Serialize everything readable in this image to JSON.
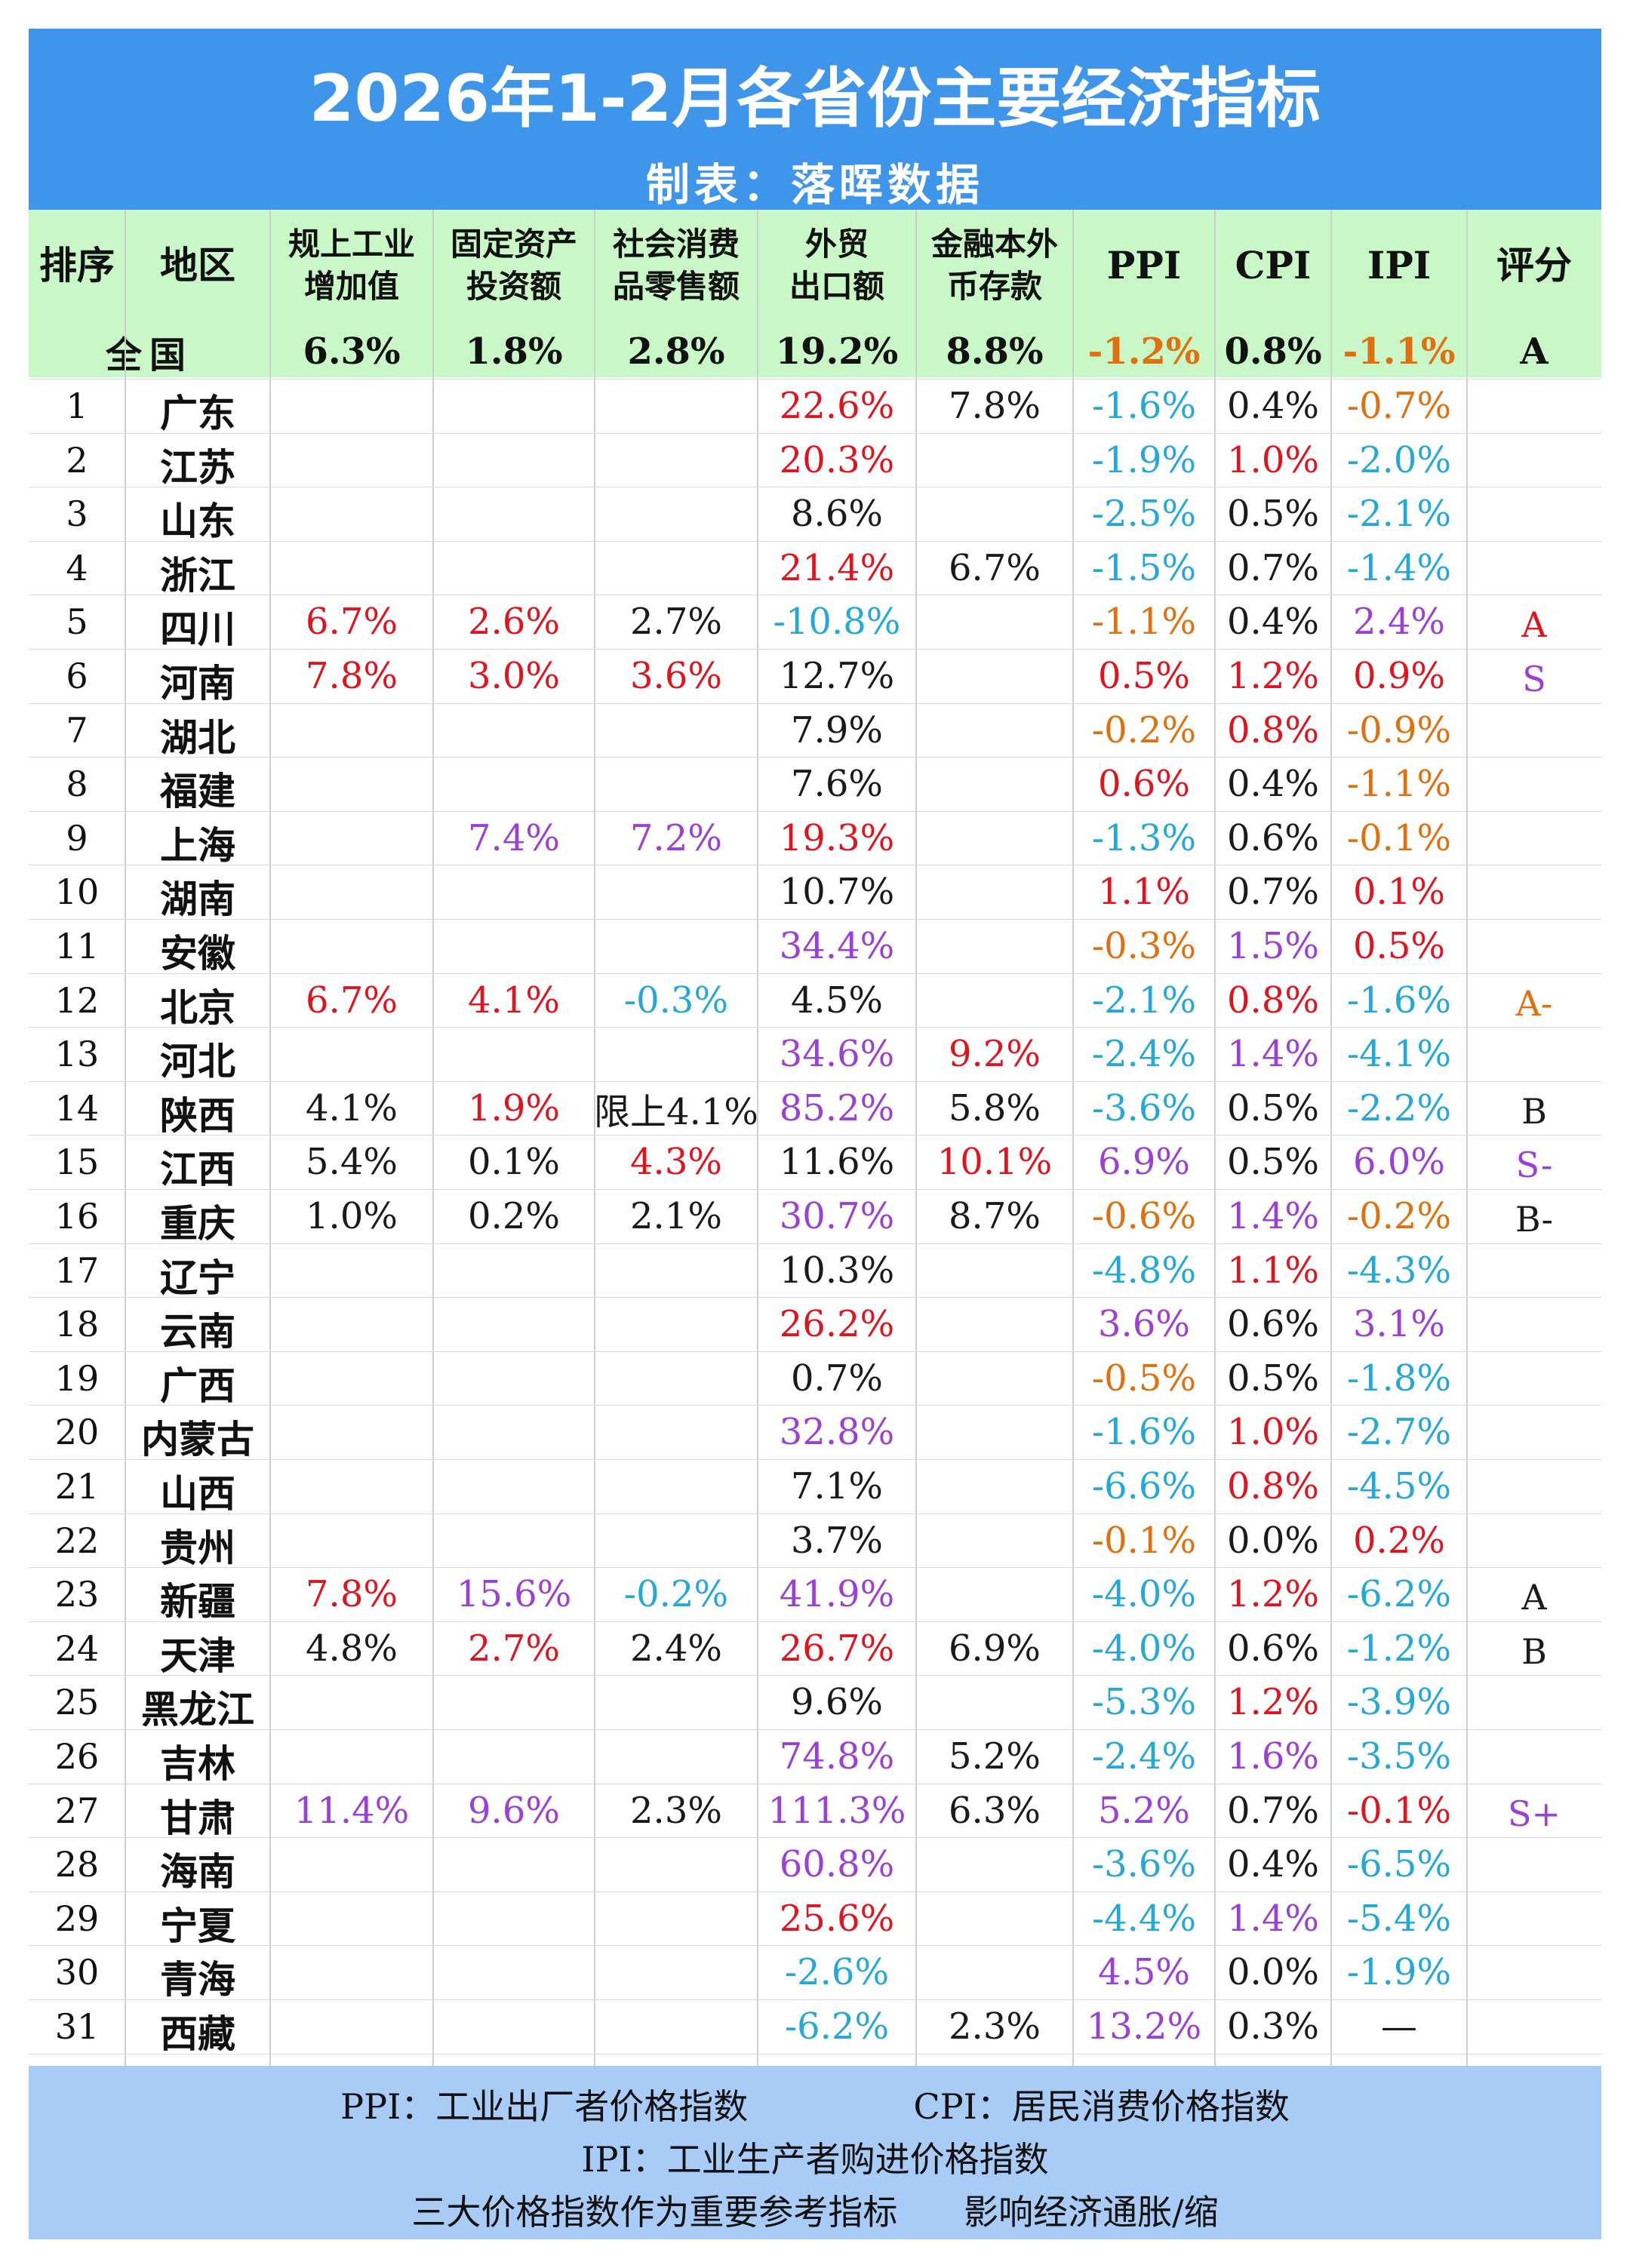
{
  "title": "2026年1-2月各省份主要经济指标",
  "subtitle": "制表：落晖数据",
  "columns": [
    "排序",
    "地区",
    "规上工业\n增加值",
    "固定资产\n投资额",
    "社会消费\n品零售额",
    "外贸\n出口额",
    "金融本外\n币存款",
    "PPI",
    "CPI",
    "IPI",
    "评分"
  ],
  "national": {
    "label": "全国",
    "values": [
      "6.3%",
      "1.8%",
      "2.8%",
      "19.2%",
      "8.8%",
      "-1.2%",
      "0.8%",
      "-1.1%",
      "A"
    ],
    "colors": [
      "#111111",
      "#111111",
      "#111111",
      "#111111",
      "#111111",
      "#e0700e",
      "#111111",
      "#e0700e",
      "#111111"
    ]
  },
  "colors": {
    "k": "#1a1a1a",
    "r": "#e0141e",
    "p": "#9b3fd6",
    "c": "#24a8d8",
    "o": "#e0700e",
    "title_bg": "#3f95e9",
    "header_bg": "#c9f7c8",
    "footer_bg": "#a9ccf6"
  },
  "rows": [
    {
      "rank": "1",
      "region": "广东",
      "cells": [
        [
          "",
          ""
        ],
        [
          "",
          ""
        ],
        [
          "",
          ""
        ],
        [
          "22.6%",
          "r"
        ],
        [
          "7.8%",
          "k"
        ],
        [
          "-1.6%",
          "c"
        ],
        [
          "0.4%",
          "k"
        ],
        [
          "-0.7%",
          "o"
        ],
        [
          "",
          ""
        ]
      ]
    },
    {
      "rank": "2",
      "region": "江苏",
      "cells": [
        [
          "",
          ""
        ],
        [
          "",
          ""
        ],
        [
          "",
          ""
        ],
        [
          "20.3%",
          "r"
        ],
        [
          "",
          ""
        ],
        [
          "-1.9%",
          "c"
        ],
        [
          "1.0%",
          "r"
        ],
        [
          "-2.0%",
          "c"
        ],
        [
          "",
          ""
        ]
      ]
    },
    {
      "rank": "3",
      "region": "山东",
      "cells": [
        [
          "",
          ""
        ],
        [
          "",
          ""
        ],
        [
          "",
          ""
        ],
        [
          "8.6%",
          "k"
        ],
        [
          "",
          ""
        ],
        [
          "-2.5%",
          "c"
        ],
        [
          "0.5%",
          "k"
        ],
        [
          "-2.1%",
          "c"
        ],
        [
          "",
          ""
        ]
      ]
    },
    {
      "rank": "4",
      "region": "浙江",
      "cells": [
        [
          "",
          ""
        ],
        [
          "",
          ""
        ],
        [
          "",
          ""
        ],
        [
          "21.4%",
          "r"
        ],
        [
          "6.7%",
          "k"
        ],
        [
          "-1.5%",
          "c"
        ],
        [
          "0.7%",
          "k"
        ],
        [
          "-1.4%",
          "c"
        ],
        [
          "",
          ""
        ]
      ]
    },
    {
      "rank": "5",
      "region": "四川",
      "cells": [
        [
          "6.7%",
          "r"
        ],
        [
          "2.6%",
          "r"
        ],
        [
          "2.7%",
          "k"
        ],
        [
          "-10.8%",
          "c"
        ],
        [
          "",
          ""
        ],
        [
          "-1.1%",
          "o"
        ],
        [
          "0.4%",
          "k"
        ],
        [
          "2.4%",
          "p"
        ],
        [
          "A",
          "r"
        ]
      ]
    },
    {
      "rank": "6",
      "region": "河南",
      "cells": [
        [
          "7.8%",
          "r"
        ],
        [
          "3.0%",
          "r"
        ],
        [
          "3.6%",
          "r"
        ],
        [
          "12.7%",
          "k"
        ],
        [
          "",
          ""
        ],
        [
          "0.5%",
          "r"
        ],
        [
          "1.2%",
          "r"
        ],
        [
          "0.9%",
          "r"
        ],
        [
          "S",
          "p"
        ]
      ]
    },
    {
      "rank": "7",
      "region": "湖北",
      "cells": [
        [
          "",
          ""
        ],
        [
          "",
          ""
        ],
        [
          "",
          ""
        ],
        [
          "7.9%",
          "k"
        ],
        [
          "",
          ""
        ],
        [
          "-0.2%",
          "o"
        ],
        [
          "0.8%",
          "r"
        ],
        [
          "-0.9%",
          "o"
        ],
        [
          "",
          ""
        ]
      ]
    },
    {
      "rank": "8",
      "region": "福建",
      "cells": [
        [
          "",
          ""
        ],
        [
          "",
          ""
        ],
        [
          "",
          ""
        ],
        [
          "7.6%",
          "k"
        ],
        [
          "",
          ""
        ],
        [
          "0.6%",
          "r"
        ],
        [
          "0.4%",
          "k"
        ],
        [
          "-1.1%",
          "o"
        ],
        [
          "",
          ""
        ]
      ]
    },
    {
      "rank": "9",
      "region": "上海",
      "cells": [
        [
          "",
          ""
        ],
        [
          "7.4%",
          "p"
        ],
        [
          "7.2%",
          "p"
        ],
        [
          "19.3%",
          "r"
        ],
        [
          "",
          ""
        ],
        [
          "-1.3%",
          "c"
        ],
        [
          "0.6%",
          "k"
        ],
        [
          "-0.1%",
          "o"
        ],
        [
          "",
          ""
        ]
      ]
    },
    {
      "rank": "10",
      "region": "湖南",
      "cells": [
        [
          "",
          ""
        ],
        [
          "",
          ""
        ],
        [
          "",
          ""
        ],
        [
          "10.7%",
          "k"
        ],
        [
          "",
          ""
        ],
        [
          "1.1%",
          "r"
        ],
        [
          "0.7%",
          "k"
        ],
        [
          "0.1%",
          "r"
        ],
        [
          "",
          ""
        ]
      ]
    },
    {
      "rank": "11",
      "region": "安徽",
      "cells": [
        [
          "",
          ""
        ],
        [
          "",
          ""
        ],
        [
          "",
          ""
        ],
        [
          "34.4%",
          "p"
        ],
        [
          "",
          ""
        ],
        [
          "-0.3%",
          "o"
        ],
        [
          "1.5%",
          "p"
        ],
        [
          "0.5%",
          "r"
        ],
        [
          "",
          ""
        ]
      ]
    },
    {
      "rank": "12",
      "region": "北京",
      "cells": [
        [
          "6.7%",
          "r"
        ],
        [
          "4.1%",
          "r"
        ],
        [
          "-0.3%",
          "c"
        ],
        [
          "4.5%",
          "k"
        ],
        [
          "",
          ""
        ],
        [
          "-2.1%",
          "c"
        ],
        [
          "0.8%",
          "r"
        ],
        [
          "-1.6%",
          "c"
        ],
        [
          "A-",
          "o"
        ]
      ]
    },
    {
      "rank": "13",
      "region": "河北",
      "cells": [
        [
          "",
          ""
        ],
        [
          "",
          ""
        ],
        [
          "",
          ""
        ],
        [
          "34.6%",
          "p"
        ],
        [
          "9.2%",
          "r"
        ],
        [
          "-2.4%",
          "c"
        ],
        [
          "1.4%",
          "p"
        ],
        [
          "-4.1%",
          "c"
        ],
        [
          "",
          ""
        ]
      ]
    },
    {
      "rank": "14",
      "region": "陕西",
      "cells": [
        [
          "4.1%",
          "k"
        ],
        [
          "1.9%",
          "r"
        ],
        [
          "限上4.1%",
          "k"
        ],
        [
          "85.2%",
          "p"
        ],
        [
          "5.8%",
          "k"
        ],
        [
          "-3.6%",
          "c"
        ],
        [
          "0.5%",
          "k"
        ],
        [
          "-2.2%",
          "c"
        ],
        [
          "B",
          "k"
        ]
      ]
    },
    {
      "rank": "15",
      "region": "江西",
      "cells": [
        [
          "5.4%",
          "k"
        ],
        [
          "0.1%",
          "k"
        ],
        [
          "4.3%",
          "r"
        ],
        [
          "11.6%",
          "k"
        ],
        [
          "10.1%",
          "r"
        ],
        [
          "6.9%",
          "p"
        ],
        [
          "0.5%",
          "k"
        ],
        [
          "6.0%",
          "p"
        ],
        [
          "S-",
          "p"
        ]
      ]
    },
    {
      "rank": "16",
      "region": "重庆",
      "cells": [
        [
          "1.0%",
          "k"
        ],
        [
          "0.2%",
          "k"
        ],
        [
          "2.1%",
          "k"
        ],
        [
          "30.7%",
          "p"
        ],
        [
          "8.7%",
          "k"
        ],
        [
          "-0.6%",
          "o"
        ],
        [
          "1.4%",
          "p"
        ],
        [
          "-0.2%",
          "o"
        ],
        [
          "B-",
          "k"
        ]
      ]
    },
    {
      "rank": "17",
      "region": "辽宁",
      "cells": [
        [
          "",
          ""
        ],
        [
          "",
          ""
        ],
        [
          "",
          ""
        ],
        [
          "10.3%",
          "k"
        ],
        [
          "",
          ""
        ],
        [
          "-4.8%",
          "c"
        ],
        [
          "1.1%",
          "r"
        ],
        [
          "-4.3%",
          "c"
        ],
        [
          "",
          ""
        ]
      ]
    },
    {
      "rank": "18",
      "region": "云南",
      "cells": [
        [
          "",
          ""
        ],
        [
          "",
          ""
        ],
        [
          "",
          ""
        ],
        [
          "26.2%",
          "r"
        ],
        [
          "",
          ""
        ],
        [
          "3.6%",
          "p"
        ],
        [
          "0.6%",
          "k"
        ],
        [
          "3.1%",
          "p"
        ],
        [
          "",
          ""
        ]
      ]
    },
    {
      "rank": "19",
      "region": "广西",
      "cells": [
        [
          "",
          ""
        ],
        [
          "",
          ""
        ],
        [
          "",
          ""
        ],
        [
          "0.7%",
          "k"
        ],
        [
          "",
          ""
        ],
        [
          "-0.5%",
          "o"
        ],
        [
          "0.5%",
          "k"
        ],
        [
          "-1.8%",
          "c"
        ],
        [
          "",
          ""
        ]
      ]
    },
    {
      "rank": "20",
      "region": "内蒙古",
      "cells": [
        [
          "",
          ""
        ],
        [
          "",
          ""
        ],
        [
          "",
          ""
        ],
        [
          "32.8%",
          "p"
        ],
        [
          "",
          ""
        ],
        [
          "-1.6%",
          "c"
        ],
        [
          "1.0%",
          "r"
        ],
        [
          "-2.7%",
          "c"
        ],
        [
          "",
          ""
        ]
      ]
    },
    {
      "rank": "21",
      "region": "山西",
      "cells": [
        [
          "",
          ""
        ],
        [
          "",
          ""
        ],
        [
          "",
          ""
        ],
        [
          "7.1%",
          "k"
        ],
        [
          "",
          ""
        ],
        [
          "-6.6%",
          "c"
        ],
        [
          "0.8%",
          "r"
        ],
        [
          "-4.5%",
          "c"
        ],
        [
          "",
          ""
        ]
      ]
    },
    {
      "rank": "22",
      "region": "贵州",
      "cells": [
        [
          "",
          ""
        ],
        [
          "",
          ""
        ],
        [
          "",
          ""
        ],
        [
          "3.7%",
          "k"
        ],
        [
          "",
          ""
        ],
        [
          "-0.1%",
          "o"
        ],
        [
          "0.0%",
          "k"
        ],
        [
          "0.2%",
          "r"
        ],
        [
          "",
          ""
        ]
      ]
    },
    {
      "rank": "23",
      "region": "新疆",
      "cells": [
        [
          "7.8%",
          "r"
        ],
        [
          "15.6%",
          "p"
        ],
        [
          "-0.2%",
          "c"
        ],
        [
          "41.9%",
          "p"
        ],
        [
          "",
          ""
        ],
        [
          "-4.0%",
          "c"
        ],
        [
          "1.2%",
          "r"
        ],
        [
          "-6.2%",
          "c"
        ],
        [
          "A",
          "k"
        ]
      ]
    },
    {
      "rank": "24",
      "region": "天津",
      "cells": [
        [
          "4.8%",
          "k"
        ],
        [
          "2.7%",
          "r"
        ],
        [
          "2.4%",
          "k"
        ],
        [
          "26.7%",
          "r"
        ],
        [
          "6.9%",
          "k"
        ],
        [
          "-4.0%",
          "c"
        ],
        [
          "0.6%",
          "k"
        ],
        [
          "-1.2%",
          "c"
        ],
        [
          "B",
          "k"
        ]
      ]
    },
    {
      "rank": "25",
      "region": "黑龙江",
      "cells": [
        [
          "",
          ""
        ],
        [
          "",
          ""
        ],
        [
          "",
          ""
        ],
        [
          "9.6%",
          "k"
        ],
        [
          "",
          ""
        ],
        [
          "-5.3%",
          "c"
        ],
        [
          "1.2%",
          "r"
        ],
        [
          "-3.9%",
          "c"
        ],
        [
          "",
          ""
        ]
      ]
    },
    {
      "rank": "26",
      "region": "吉林",
      "cells": [
        [
          "",
          ""
        ],
        [
          "",
          ""
        ],
        [
          "",
          ""
        ],
        [
          "74.8%",
          "p"
        ],
        [
          "5.2%",
          "k"
        ],
        [
          "-2.4%",
          "c"
        ],
        [
          "1.6%",
          "p"
        ],
        [
          "-3.5%",
          "c"
        ],
        [
          "",
          ""
        ]
      ]
    },
    {
      "rank": "27",
      "region": "甘肃",
      "cells": [
        [
          "11.4%",
          "p"
        ],
        [
          "9.6%",
          "p"
        ],
        [
          "2.3%",
          "k"
        ],
        [
          "111.3%",
          "p"
        ],
        [
          "6.3%",
          "k"
        ],
        [
          "5.2%",
          "p"
        ],
        [
          "0.7%",
          "k"
        ],
        [
          "-0.1%",
          "r"
        ],
        [
          "S+",
          "p"
        ]
      ]
    },
    {
      "rank": "28",
      "region": "海南",
      "cells": [
        [
          "",
          ""
        ],
        [
          "",
          ""
        ],
        [
          "",
          ""
        ],
        [
          "60.8%",
          "p"
        ],
        [
          "",
          ""
        ],
        [
          "-3.6%",
          "c"
        ],
        [
          "0.4%",
          "k"
        ],
        [
          "-6.5%",
          "c"
        ],
        [
          "",
          ""
        ]
      ]
    },
    {
      "rank": "29",
      "region": "宁夏",
      "cells": [
        [
          "",
          ""
        ],
        [
          "",
          ""
        ],
        [
          "",
          ""
        ],
        [
          "25.6%",
          "r"
        ],
        [
          "",
          ""
        ],
        [
          "-4.4%",
          "c"
        ],
        [
          "1.4%",
          "p"
        ],
        [
          "-5.4%",
          "c"
        ],
        [
          "",
          ""
        ]
      ]
    },
    {
      "rank": "30",
      "region": "青海",
      "cells": [
        [
          "",
          ""
        ],
        [
          "",
          ""
        ],
        [
          "",
          ""
        ],
        [
          "-2.6%",
          "c"
        ],
        [
          "",
          ""
        ],
        [
          "4.5%",
          "p"
        ],
        [
          "0.0%",
          "k"
        ],
        [
          "-1.9%",
          "c"
        ],
        [
          "",
          ""
        ]
      ]
    },
    {
      "rank": "31",
      "region": "西藏",
      "cells": [
        [
          "",
          ""
        ],
        [
          "",
          ""
        ],
        [
          "",
          ""
        ],
        [
          "-6.2%",
          "c"
        ],
        [
          "2.3%",
          "k"
        ],
        [
          "13.2%",
          "p"
        ],
        [
          "0.3%",
          "k"
        ],
        [
          "—",
          "k"
        ],
        [
          "",
          ""
        ]
      ]
    }
  ],
  "footer": {
    "line1_left": "PPI：工业出厂者价格指数",
    "line1_right": "CPI：居民消费价格指数",
    "line2": "IPI：工业生产者购进价格指数",
    "line3": "三大价格指数作为重要参考指标      影响经济通胀/缩"
  }
}
